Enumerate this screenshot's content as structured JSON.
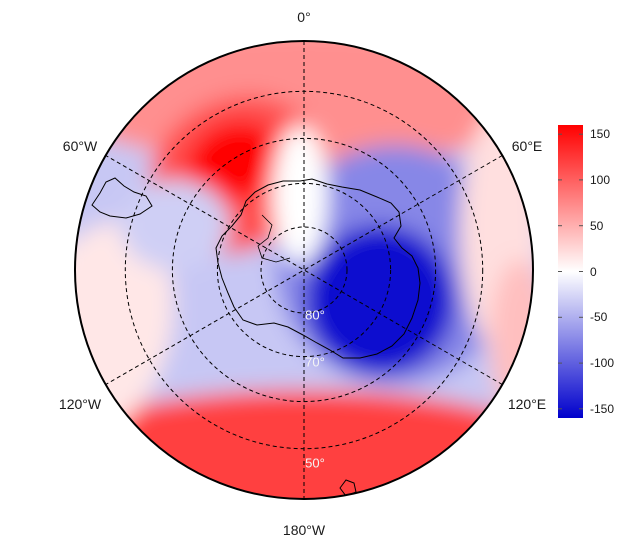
{
  "map": {
    "projection": "south-polar-stereographic",
    "colormap": {
      "low": "#0000cc",
      "mid": "#ffffff",
      "high": "#ff0000"
    },
    "longitude_labels": [
      {
        "lon": 0,
        "text": "0°"
      },
      {
        "lon": 60,
        "text": "60°E"
      },
      {
        "lon": 120,
        "text": "120°E"
      },
      {
        "lon": 180,
        "text": "180°W"
      },
      {
        "lon": -120,
        "text": "120°W"
      },
      {
        "lon": -60,
        "text": "60°W"
      }
    ],
    "latitude_labels": [
      {
        "lat": -80,
        "text": "80°"
      },
      {
        "lat": -70,
        "text": "70°"
      },
      {
        "lat": -50,
        "text": "50°"
      }
    ],
    "latitude_circles": [
      -80,
      -70,
      -60,
      -50
    ]
  },
  "colorbar": {
    "min": -160,
    "max": 160,
    "ticks": [
      {
        "value": 150,
        "text": "150"
      },
      {
        "value": 100,
        "text": "100"
      },
      {
        "value": 50,
        "text": "50"
      },
      {
        "value": 0,
        "text": "0"
      },
      {
        "value": -50,
        "text": "-50"
      },
      {
        "value": -100,
        "text": "-100"
      },
      {
        "value": -150,
        "text": "-150"
      }
    ]
  }
}
